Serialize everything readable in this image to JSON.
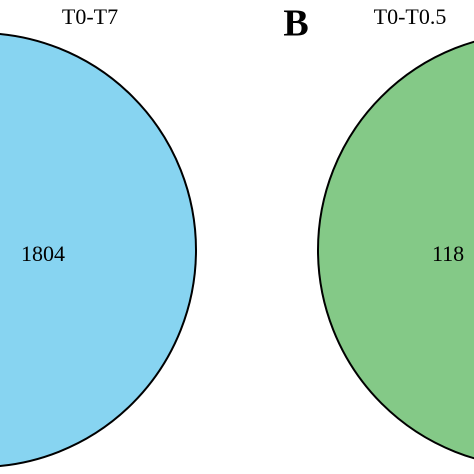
{
  "panels": [
    {
      "title": "T0-T7",
      "count": 1804
    },
    {
      "letter": "B",
      "title": "T0-T0.5",
      "count": 118
    }
  ]
}
